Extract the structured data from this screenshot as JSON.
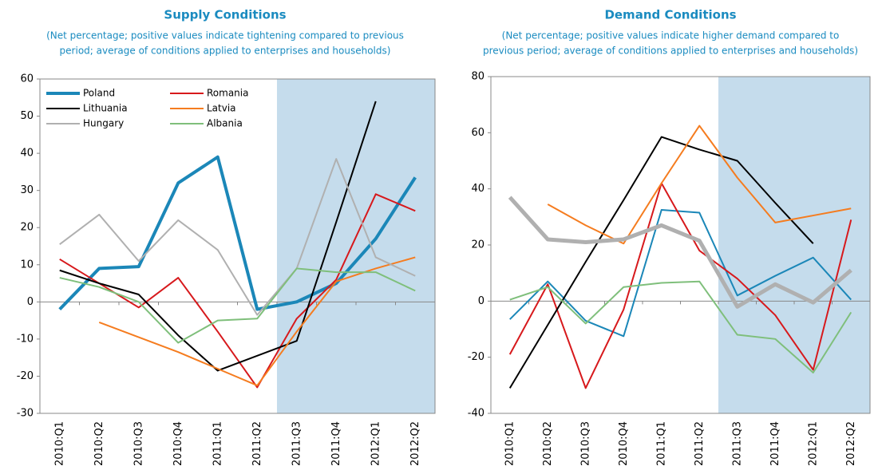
{
  "chart_data": [
    {
      "type": "line",
      "title": "Supply Conditions",
      "subtitle": [
        "(Net percentage; positive values indicate tightening compared to previous",
        "period; average of conditions applied to enterprises and households)"
      ],
      "categories": [
        "2010:Q1",
        "2010:Q2",
        "2010:Q3",
        "2010:Q4",
        "2011:Q1",
        "2011:Q2",
        "2011:Q3",
        "2011:Q4",
        "2012:Q1",
        "2012:Q2"
      ],
      "ylim": [
        -30,
        60
      ],
      "yticks": [
        -30,
        -20,
        -10,
        0,
        10,
        20,
        30,
        40,
        50,
        60
      ],
      "legend": "upper left",
      "series": [
        {
          "name": "Poland",
          "color": "#1b87b8",
          "linewidth": 4,
          "values": [
            -2,
            9,
            9.5,
            32,
            39,
            -2,
            0,
            5,
            17,
            33.5
          ]
        },
        {
          "name": "Romania",
          "color": "#d7191c",
          "linewidth": 2,
          "values": [
            11.5,
            5,
            -1.5,
            6.5,
            -8,
            -23,
            -4.5,
            6,
            29,
            24.5
          ]
        },
        {
          "name": "Lithuania",
          "color": "#000000",
          "linewidth": 2,
          "values": [
            8.5,
            5,
            2,
            -9,
            -18.5,
            -14.5,
            -10.5,
            21.5,
            54,
            null
          ]
        },
        {
          "name": "Latvia",
          "color": "#f57c1f",
          "linewidth": 2,
          "values": [
            null,
            -5.5,
            -9.5,
            -13.5,
            -18,
            -22.5,
            -8,
            5.5,
            9,
            12
          ]
        },
        {
          "name": "Hungary",
          "color": "#b0b0b0",
          "linewidth": 2,
          "values": [
            15.5,
            23.5,
            11,
            22,
            14,
            -3.5,
            9,
            38.5,
            12,
            7
          ]
        },
        {
          "name": "Albania",
          "color": "#7fbf7b",
          "linewidth": 2,
          "values": [
            6.5,
            4,
            0,
            -11,
            -5,
            -4.5,
            9,
            8,
            8,
            3
          ]
        }
      ]
    },
    {
      "type": "line",
      "title": "Demand Conditions",
      "subtitle": [
        "(Net percentage; positive values indicate higher demand compared to",
        "previous period; average of conditions applied to enterprises and households)"
      ],
      "categories": [
        "2010:Q1",
        "2010:Q2",
        "2010:Q3",
        "2010:Q4",
        "2011:Q1",
        "2011:Q2",
        "2011:Q3",
        "2011:Q4",
        "2012:Q1",
        "2012:Q2"
      ],
      "ylim": [
        -40,
        80
      ],
      "yticks": [
        -40,
        -20,
        0,
        20,
        40,
        60,
        80
      ],
      "series": [
        {
          "color": "#1b87b8",
          "linewidth": 2,
          "values": [
            -6.5,
            7,
            -7,
            -12.5,
            32.5,
            31.5,
            2,
            9,
            15.5,
            0.5
          ]
        },
        {
          "color": "#d7191c",
          "linewidth": 2,
          "values": [
            -19,
            6,
            -31,
            -3,
            42,
            18,
            8,
            -5,
            -24.5,
            29
          ]
        },
        {
          "color": "#000000",
          "linewidth": 2,
          "values": [
            -31,
            -8.5,
            14,
            36,
            58.5,
            54,
            50,
            35,
            20.5,
            null
          ]
        },
        {
          "color": "#f57c1f",
          "linewidth": 2,
          "values": [
            null,
            34.5,
            27,
            20.5,
            42,
            62.5,
            44,
            28,
            30.5,
            33
          ]
        },
        {
          "color": "#b0b0b0",
          "linewidth": 5,
          "values": [
            37,
            22,
            21,
            22,
            27,
            21.5,
            -2,
            6,
            -0.5,
            11
          ]
        },
        {
          "color": "#7fbf7b",
          "linewidth": 2,
          "values": [
            0.5,
            5,
            -8,
            5,
            6.5,
            7,
            -12,
            -13.5,
            -25.5,
            -4
          ]
        }
      ]
    }
  ]
}
